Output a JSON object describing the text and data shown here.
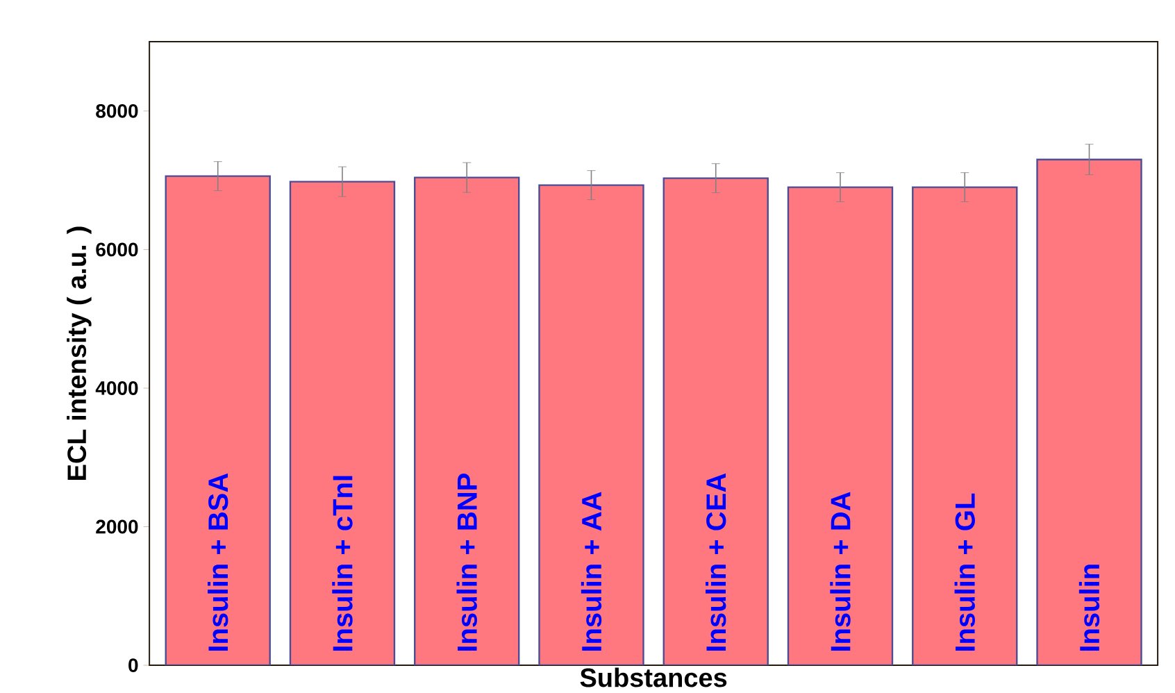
{
  "chart_data": {
    "type": "bar",
    "categories": [
      "Insulin + BSA",
      "Insulin + cTnI",
      "Insulin + BNP",
      "Insulin + AA",
      "Insulin + CEA",
      "Insulin + DA",
      "Insulin + GL",
      "Insulin"
    ],
    "values": [
      7060,
      6980,
      7040,
      6930,
      7030,
      6900,
      6900,
      7300
    ],
    "errors": [
      210,
      215,
      215,
      210,
      210,
      210,
      210,
      220
    ],
    "color": "#ff7880",
    "xlabel": "Substances",
    "ylabel": "ECL intensity ( a.u. )",
    "ylim": [
      0,
      9000
    ],
    "yticks": [
      0,
      2000,
      4000,
      6000,
      8000
    ],
    "tick_labels": "y"
  }
}
